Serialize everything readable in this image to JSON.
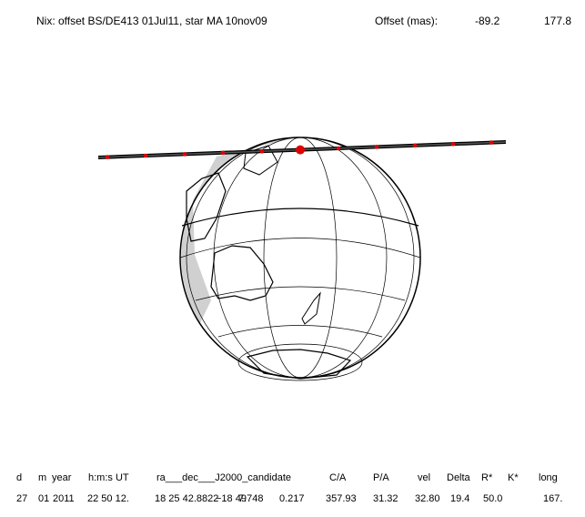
{
  "header": {
    "title": "Nix: offset BS/DE413 01Jul11, star MA 10nov09",
    "offset_label": "Offset (mas):",
    "offset_x": "-89.2",
    "offset_y": "177.8"
  },
  "table": {
    "columns": [
      "d",
      "m",
      "year",
      "h:m:s UT",
      "ra___dec___J2000_candidate",
      "C/A",
      "P/A",
      "vel",
      "Delta",
      "R*",
      "K*",
      "long"
    ],
    "values": [
      "27",
      "01",
      "2011",
      "22 50 12.",
      "18 25 42.8822",
      "−18 49",
      "7.748",
      "0.217",
      "357.93",
      "31.32",
      "32.80",
      "19.4",
      "50.0",
      "167."
    ]
  }
}
